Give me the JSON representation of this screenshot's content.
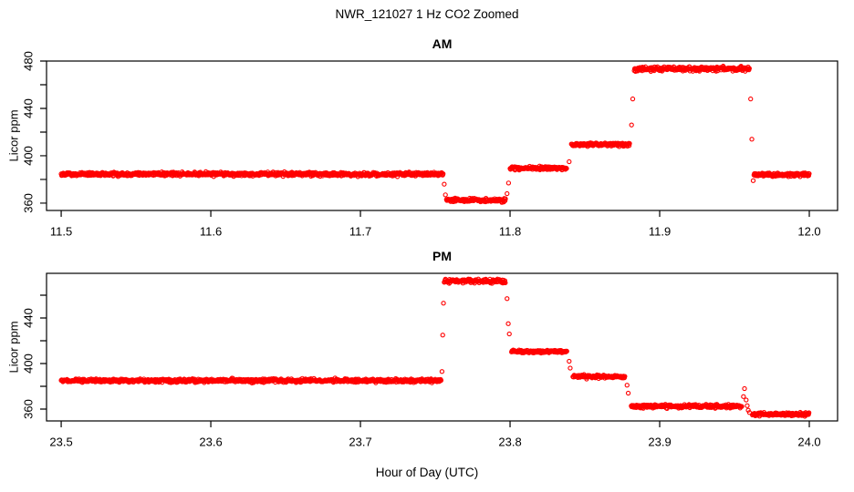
{
  "page_title": "NWR_121027  1 Hz CO2 Zoomed",
  "xlabel": "Hour of Day (UTC)",
  "colors": {
    "points": "#FF0000",
    "axis": "#000000",
    "background": "#FFFFFF"
  },
  "chart_data": {
    "type": "scatter",
    "marker": "open-circle",
    "sample_rate_hz": 1,
    "point_color": "#FF0000",
    "panels": [
      {
        "id": "am",
        "title": "AM",
        "ylabel": "Licor ppm",
        "xlim": [
          11.4902,
          12.0189
        ],
        "ylim": [
          353.8,
          480.0
        ],
        "x_ticks": [
          11.5,
          11.6,
          11.7,
          11.8,
          11.9,
          12.0
        ],
        "x_tick_labels": [
          "11.5",
          "11.6",
          "11.7",
          "11.8",
          "11.9",
          "12.0"
        ],
        "y_ticks": [
          360,
          380,
          400,
          420,
          440,
          460,
          480
        ],
        "y_ticks_labeled": [
          360,
          400,
          440,
          480
        ],
        "segments": [
          {
            "x_start": 11.5,
            "x_end": 11.7555,
            "value": 384.5,
            "noise": 1.3
          },
          {
            "x_start": 11.7575,
            "x_end": 11.797,
            "value": 362.5,
            "noise": 1.3
          },
          {
            "x_start": 11.8,
            "x_end": 11.838,
            "value": 389.5,
            "noise": 1.2
          },
          {
            "x_start": 11.841,
            "x_end": 11.88,
            "value": 409.5,
            "noise": 1.2
          },
          {
            "x_start": 11.883,
            "x_end": 11.96,
            "value": 473.5,
            "noise": 1.6
          },
          {
            "x_start": 11.963,
            "x_end": 12.0,
            "value": 384.0,
            "noise": 1.3
          }
        ],
        "transition_points": [
          {
            "x": 11.756,
            "y": 376
          },
          {
            "x": 11.7568,
            "y": 367
          },
          {
            "x": 11.798,
            "y": 368
          },
          {
            "x": 11.799,
            "y": 377
          },
          {
            "x": 11.8395,
            "y": 395
          },
          {
            "x": 11.8812,
            "y": 426
          },
          {
            "x": 11.882,
            "y": 448
          },
          {
            "x": 11.9608,
            "y": 448
          },
          {
            "x": 11.9616,
            "y": 414
          },
          {
            "x": 11.9625,
            "y": 379
          }
        ]
      },
      {
        "id": "pm",
        "title": "PM",
        "ylabel": "Licor ppm",
        "xlim": [
          23.4902,
          24.0189
        ],
        "ylim": [
          349.6,
          479.2
        ],
        "x_ticks": [
          23.5,
          23.6,
          23.7,
          23.8,
          23.9,
          24.0
        ],
        "x_tick_labels": [
          "23.5",
          "23.6",
          "23.7",
          "23.8",
          "23.9",
          "24.0"
        ],
        "y_ticks": [
          360,
          380,
          400,
          420,
          440,
          460
        ],
        "y_ticks_labeled": [
          360,
          400,
          440
        ],
        "segments": [
          {
            "x_start": 23.5,
            "x_end": 23.754,
            "value": 385.0,
            "noise": 1.3
          },
          {
            "x_start": 23.756,
            "x_end": 23.797,
            "value": 472.5,
            "noise": 1.5
          },
          {
            "x_start": 23.801,
            "x_end": 23.838,
            "value": 410.5,
            "noise": 1.2
          },
          {
            "x_start": 23.842,
            "x_end": 23.877,
            "value": 388.5,
            "noise": 1.2
          },
          {
            "x_start": 23.881,
            "x_end": 23.955,
            "value": 362.5,
            "noise": 1.2
          },
          {
            "x_start": 23.962,
            "x_end": 24.0,
            "value": 355.5,
            "noise": 1.2
          }
        ],
        "transition_points": [
          {
            "x": 23.7545,
            "y": 393
          },
          {
            "x": 23.755,
            "y": 425
          },
          {
            "x": 23.7555,
            "y": 453
          },
          {
            "x": 23.798,
            "y": 457
          },
          {
            "x": 23.7988,
            "y": 435
          },
          {
            "x": 23.7995,
            "y": 426
          },
          {
            "x": 23.8395,
            "y": 402
          },
          {
            "x": 23.8402,
            "y": 396
          },
          {
            "x": 23.8782,
            "y": 381
          },
          {
            "x": 23.879,
            "y": 374
          },
          {
            "x": 23.956,
            "y": 371
          },
          {
            "x": 23.9567,
            "y": 378
          },
          {
            "x": 23.9578,
            "y": 368
          },
          {
            "x": 23.9585,
            "y": 363
          },
          {
            "x": 23.9592,
            "y": 359
          },
          {
            "x": 23.96,
            "y": 357
          }
        ]
      }
    ]
  }
}
